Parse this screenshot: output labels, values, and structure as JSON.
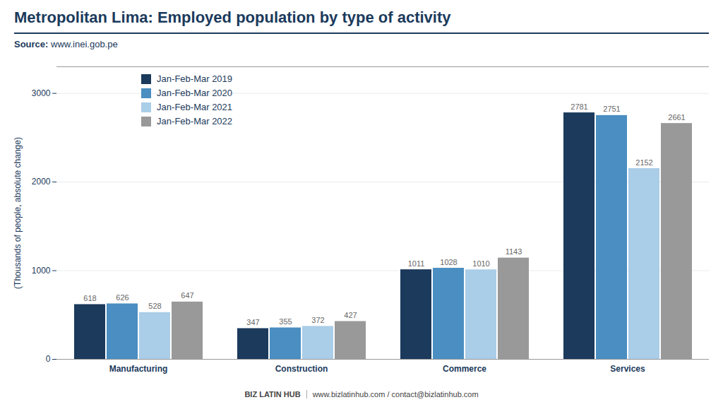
{
  "chart_data": {
    "type": "bar",
    "title": "Metropolitan Lima: Employed population by type of activity",
    "ylabel": "(Thousands of people, absolute change)",
    "annotations": [
      "Source:",
      "www.inei.gob.pe",
      "BIZ",
      "LATIN",
      "HUB",
      "www.bizlatinhub.com / contact@bizlatinhub.com"
    ],
    "categories": [
      "Manufacturing",
      "Construction",
      "Commerce",
      "Services"
    ],
    "series": [
      {
        "name": "Jan-Feb-Mar 2019",
        "color": "#1b3a5c",
        "values": [
          618,
          347,
          1011,
          2781
        ]
      },
      {
        "name": "Jan-Feb-Mar 2020",
        "color": "#4a8ec2",
        "values": [
          626,
          355,
          1028,
          2751
        ]
      },
      {
        "name": "Jan-Feb-Mar 2021",
        "color": "#aacde8",
        "values": [
          528,
          372,
          1010,
          2152
        ]
      },
      {
        "name": "Jan-Feb-Mar 2022",
        "color": "#999999",
        "values": [
          647,
          427,
          1143,
          2661
        ]
      }
    ],
    "ylim": [
      0,
      3300
    ],
    "yticks": [
      0,
      1000,
      2000,
      3000
    ],
    "grid": true,
    "legend": "upper left",
    "data_labels": true
  }
}
